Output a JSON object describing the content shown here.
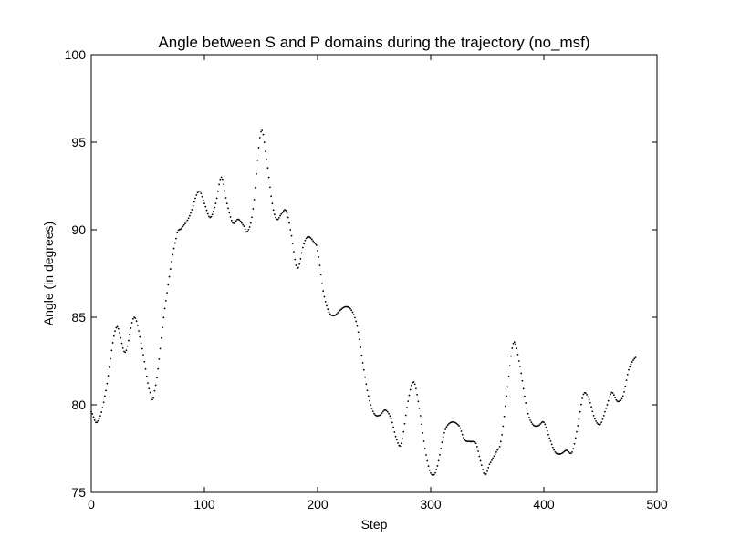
{
  "chart_data": {
    "type": "scatter",
    "title": "Angle between S and P domains during the trajectory (no_msf)",
    "xlabel": "Step",
    "ylabel": "Angle (in degrees)",
    "xlim": [
      0,
      500
    ],
    "ylim": [
      75,
      100
    ],
    "xticks": [
      "0",
      "100",
      "200",
      "300",
      "400",
      "500"
    ],
    "yticks": [
      "75",
      "80",
      "85",
      "90",
      "95",
      "100"
    ],
    "grid": false,
    "legend": "none",
    "marker_color": "#000000",
    "keypoints": [
      [
        0,
        79.6
      ],
      [
        5,
        79.0
      ],
      [
        12,
        80.5
      ],
      [
        22,
        84.4
      ],
      [
        30,
        83.0
      ],
      [
        38,
        85.0
      ],
      [
        45,
        83.2
      ],
      [
        52,
        80.7
      ],
      [
        56,
        80.8
      ],
      [
        65,
        85.5
      ],
      [
        75,
        89.5
      ],
      [
        80,
        90.1
      ],
      [
        87,
        90.8
      ],
      [
        95,
        92.2
      ],
      [
        100,
        91.5
      ],
      [
        105,
        90.7
      ],
      [
        110,
        91.5
      ],
      [
        115,
        93.0
      ],
      [
        120,
        91.5
      ],
      [
        125,
        90.4
      ],
      [
        130,
        90.6
      ],
      [
        135,
        90.2
      ],
      [
        138,
        89.9
      ],
      [
        143,
        91.2
      ],
      [
        150,
        95.6
      ],
      [
        155,
        94.0
      ],
      [
        160,
        91.5
      ],
      [
        164,
        90.6
      ],
      [
        168,
        90.9
      ],
      [
        172,
        91.1
      ],
      [
        176,
        90.0
      ],
      [
        182,
        87.8
      ],
      [
        188,
        89.2
      ],
      [
        192,
        89.6
      ],
      [
        198,
        89.2
      ],
      [
        200,
        88.8
      ],
      [
        205,
        86.5
      ],
      [
        210,
        85.3
      ],
      [
        215,
        85.1
      ],
      [
        220,
        85.4
      ],
      [
        225,
        85.6
      ],
      [
        230,
        85.4
      ],
      [
        235,
        84.5
      ],
      [
        240,
        82.4
      ],
      [
        245,
        80.5
      ],
      [
        250,
        79.5
      ],
      [
        255,
        79.4
      ],
      [
        260,
        79.7
      ],
      [
        265,
        79.2
      ],
      [
        270,
        78.0
      ],
      [
        274,
        77.8
      ],
      [
        280,
        80.2
      ],
      [
        285,
        81.3
      ],
      [
        290,
        79.8
      ],
      [
        295,
        77.5
      ],
      [
        300,
        76.1
      ],
      [
        305,
        76.3
      ],
      [
        312,
        78.4
      ],
      [
        318,
        79.0
      ],
      [
        325,
        78.8
      ],
      [
        330,
        78.0
      ],
      [
        335,
        77.9
      ],
      [
        340,
        77.8
      ],
      [
        344,
        76.8
      ],
      [
        348,
        76.0
      ],
      [
        352,
        76.6
      ],
      [
        358,
        77.3
      ],
      [
        362,
        77.9
      ],
      [
        367,
        80.5
      ],
      [
        373,
        83.5
      ],
      [
        378,
        82.5
      ],
      [
        385,
        79.8
      ],
      [
        390,
        78.9
      ],
      [
        395,
        78.8
      ],
      [
        400,
        79.0
      ],
      [
        405,
        78.1
      ],
      [
        410,
        77.3
      ],
      [
        415,
        77.2
      ],
      [
        420,
        77.4
      ],
      [
        425,
        77.3
      ],
      [
        430,
        78.8
      ],
      [
        435,
        80.6
      ],
      [
        440,
        80.3
      ],
      [
        445,
        79.2
      ],
      [
        450,
        78.9
      ],
      [
        455,
        79.8
      ],
      [
        460,
        80.7
      ],
      [
        465,
        80.2
      ],
      [
        470,
        80.5
      ],
      [
        475,
        82.0
      ],
      [
        481,
        82.7
      ]
    ]
  }
}
